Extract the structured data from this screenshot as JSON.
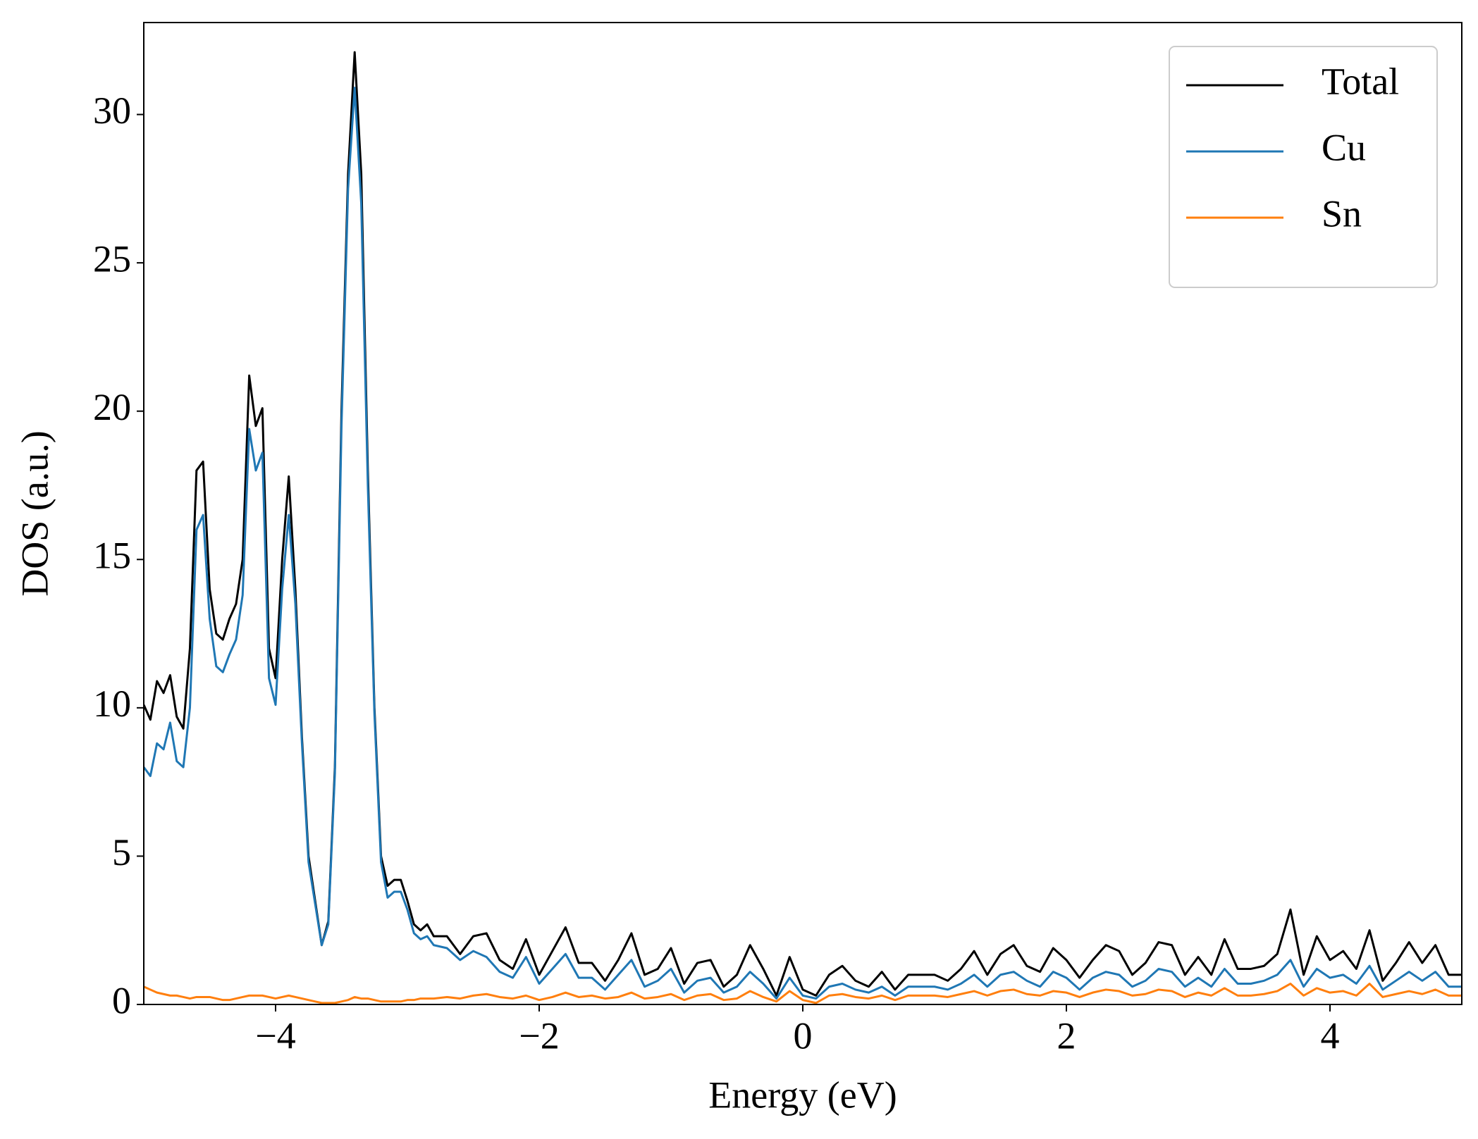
{
  "chart_data": {
    "type": "line",
    "xlabel": "Energy (eV)",
    "ylabel": "DOS (a.u.)",
    "xlim": [
      -5,
      5
    ],
    "ylim": [
      0,
      33.1
    ],
    "xticks": [
      {
        "value": -4,
        "label": "−4"
      },
      {
        "value": -2,
        "label": "−2"
      },
      0,
      2,
      4
    ],
    "yticks": [
      0,
      5,
      10,
      15,
      20,
      25,
      30
    ],
    "grid": false,
    "legend": "upper right",
    "x": [
      -5,
      -4.95,
      -4.9,
      -4.85,
      -4.8,
      -4.75,
      -4.7,
      -4.65,
      -4.6,
      -4.55,
      -4.5,
      -4.45,
      -4.4,
      -4.35,
      -4.3,
      -4.25,
      -4.2,
      -4.15,
      -4.1,
      -4.05,
      -4,
      -3.95,
      -3.9,
      -3.85,
      -3.8,
      -3.75,
      -3.7,
      -3.65,
      -3.6,
      -3.55,
      -3.5,
      -3.45,
      -3.4,
      -3.35,
      -3.3,
      -3.25,
      -3.2,
      -3.15,
      -3.1,
      -3.05,
      -3,
      -2.95,
      -2.9,
      -2.85,
      -2.8,
      -2.7,
      -2.6,
      -2.5,
      -2.4,
      -2.3,
      -2.2,
      -2.1,
      -2,
      -1.9,
      -1.8,
      -1.7,
      -1.6,
      -1.5,
      -1.4,
      -1.3,
      -1.2,
      -1.1,
      -1,
      -0.9,
      -0.8,
      -0.7,
      -0.6,
      -0.5,
      -0.4,
      -0.3,
      -0.2,
      -0.1,
      0,
      0.1,
      0.2,
      0.3,
      0.4,
      0.5,
      0.6,
      0.7,
      0.8,
      0.9,
      1,
      1.1,
      1.2,
      1.3,
      1.4,
      1.5,
      1.6,
      1.7,
      1.8,
      1.9,
      2,
      2.1,
      2.2,
      2.3,
      2.4,
      2.5,
      2.6,
      2.7,
      2.8,
      2.9,
      3,
      3.1,
      3.2,
      3.3,
      3.4,
      3.5,
      3.6,
      3.7,
      3.8,
      3.9,
      4,
      4.1,
      4.2,
      4.3,
      4.4,
      4.5,
      4.6,
      4.7,
      4.8,
      4.9,
      5
    ],
    "series": [
      {
        "name": "Total",
        "color": "#000000",
        "values": [
          10.1,
          9.6,
          10.9,
          10.5,
          11.1,
          9.7,
          9.3,
          12,
          18,
          18.3,
          14,
          12.5,
          12.3,
          13,
          13.5,
          15,
          21.2,
          19.5,
          20.1,
          12,
          11,
          15,
          17.8,
          14,
          9,
          5,
          3.5,
          2.0,
          2.8,
          8,
          20,
          28,
          32.1,
          28,
          18,
          10,
          5,
          4.0,
          4.2,
          4.2,
          3.5,
          2.7,
          2.5,
          2.7,
          2.3,
          2.3,
          1.7,
          2.3,
          2.4,
          1.5,
          1.2,
          2.2,
          1.0,
          1.8,
          2.6,
          1.4,
          1.4,
          0.8,
          1.5,
          2.4,
          1.0,
          1.2,
          1.9,
          0.7,
          1.4,
          1.5,
          0.6,
          1.0,
          2.0,
          1.2,
          0.3,
          1.6,
          0.5,
          0.3,
          1.0,
          1.3,
          0.8,
          0.6,
          1.1,
          0.5,
          1.0,
          1.0,
          1.0,
          0.8,
          1.2,
          1.8,
          1.0,
          1.7,
          2.0,
          1.3,
          1.1,
          1.9,
          1.5,
          0.9,
          1.5,
          2.0,
          1.8,
          1.0,
          1.4,
          2.1,
          2.0,
          1.0,
          1.6,
          1.0,
          2.2,
          1.2,
          1.2,
          1.3,
          1.7,
          3.2,
          1.0,
          2.3,
          1.5,
          1.8,
          1.2,
          2.5,
          0.8,
          1.4,
          2.1,
          1.4,
          2.0,
          1.0,
          1.0
        ]
      },
      {
        "name": "Cu",
        "color": "#1f77b4",
        "values": [
          8.0,
          7.7,
          8.8,
          8.6,
          9.5,
          8.2,
          8.0,
          10,
          16.0,
          16.5,
          13,
          11.4,
          11.2,
          11.8,
          12.3,
          13.8,
          19.4,
          18,
          18.6,
          11,
          10.1,
          14,
          16.5,
          13.5,
          8.8,
          4.8,
          3.4,
          2.0,
          2.7,
          7.8,
          19.5,
          27.5,
          30.9,
          27,
          17.5,
          9.8,
          4.8,
          3.6,
          3.8,
          3.8,
          3.2,
          2.4,
          2.2,
          2.3,
          2.0,
          1.9,
          1.5,
          1.8,
          1.6,
          1.1,
          0.9,
          1.6,
          0.7,
          1.2,
          1.7,
          0.9,
          0.9,
          0.5,
          1.0,
          1.5,
          0.6,
          0.8,
          1.2,
          0.4,
          0.8,
          0.9,
          0.4,
          0.6,
          1.1,
          0.7,
          0.2,
          0.9,
          0.3,
          0.2,
          0.6,
          0.7,
          0.5,
          0.4,
          0.6,
          0.3,
          0.6,
          0.6,
          0.6,
          0.5,
          0.7,
          1.0,
          0.6,
          1.0,
          1.1,
          0.8,
          0.6,
          1.1,
          0.9,
          0.5,
          0.9,
          1.1,
          1.0,
          0.6,
          0.8,
          1.2,
          1.1,
          0.6,
          0.9,
          0.6,
          1.2,
          0.7,
          0.7,
          0.8,
          1.0,
          1.5,
          0.6,
          1.2,
          0.9,
          1.0,
          0.7,
          1.3,
          0.5,
          0.8,
          1.1,
          0.8,
          1.1,
          0.6,
          0.6
        ]
      },
      {
        "name": "Sn",
        "color": "#ff7f0e",
        "values": [
          0.6,
          0.5,
          0.4,
          0.35,
          0.3,
          0.3,
          0.25,
          0.2,
          0.25,
          0.25,
          0.25,
          0.2,
          0.15,
          0.15,
          0.2,
          0.25,
          0.3,
          0.3,
          0.3,
          0.25,
          0.2,
          0.25,
          0.3,
          0.25,
          0.2,
          0.15,
          0.1,
          0.05,
          0.05,
          0.05,
          0.1,
          0.15,
          0.25,
          0.2,
          0.2,
          0.15,
          0.1,
          0.1,
          0.1,
          0.1,
          0.15,
          0.15,
          0.2,
          0.2,
          0.2,
          0.25,
          0.2,
          0.3,
          0.35,
          0.25,
          0.2,
          0.3,
          0.15,
          0.25,
          0.4,
          0.25,
          0.3,
          0.2,
          0.25,
          0.4,
          0.2,
          0.25,
          0.35,
          0.15,
          0.3,
          0.35,
          0.15,
          0.2,
          0.45,
          0.25,
          0.1,
          0.45,
          0.15,
          0.05,
          0.3,
          0.35,
          0.25,
          0.2,
          0.3,
          0.15,
          0.3,
          0.3,
          0.3,
          0.25,
          0.35,
          0.45,
          0.3,
          0.45,
          0.5,
          0.35,
          0.3,
          0.45,
          0.4,
          0.25,
          0.4,
          0.5,
          0.45,
          0.3,
          0.35,
          0.5,
          0.45,
          0.25,
          0.4,
          0.3,
          0.55,
          0.3,
          0.3,
          0.35,
          0.45,
          0.7,
          0.3,
          0.55,
          0.4,
          0.45,
          0.3,
          0.7,
          0.25,
          0.35,
          0.45,
          0.35,
          0.5,
          0.3,
          0.3
        ]
      }
    ]
  }
}
